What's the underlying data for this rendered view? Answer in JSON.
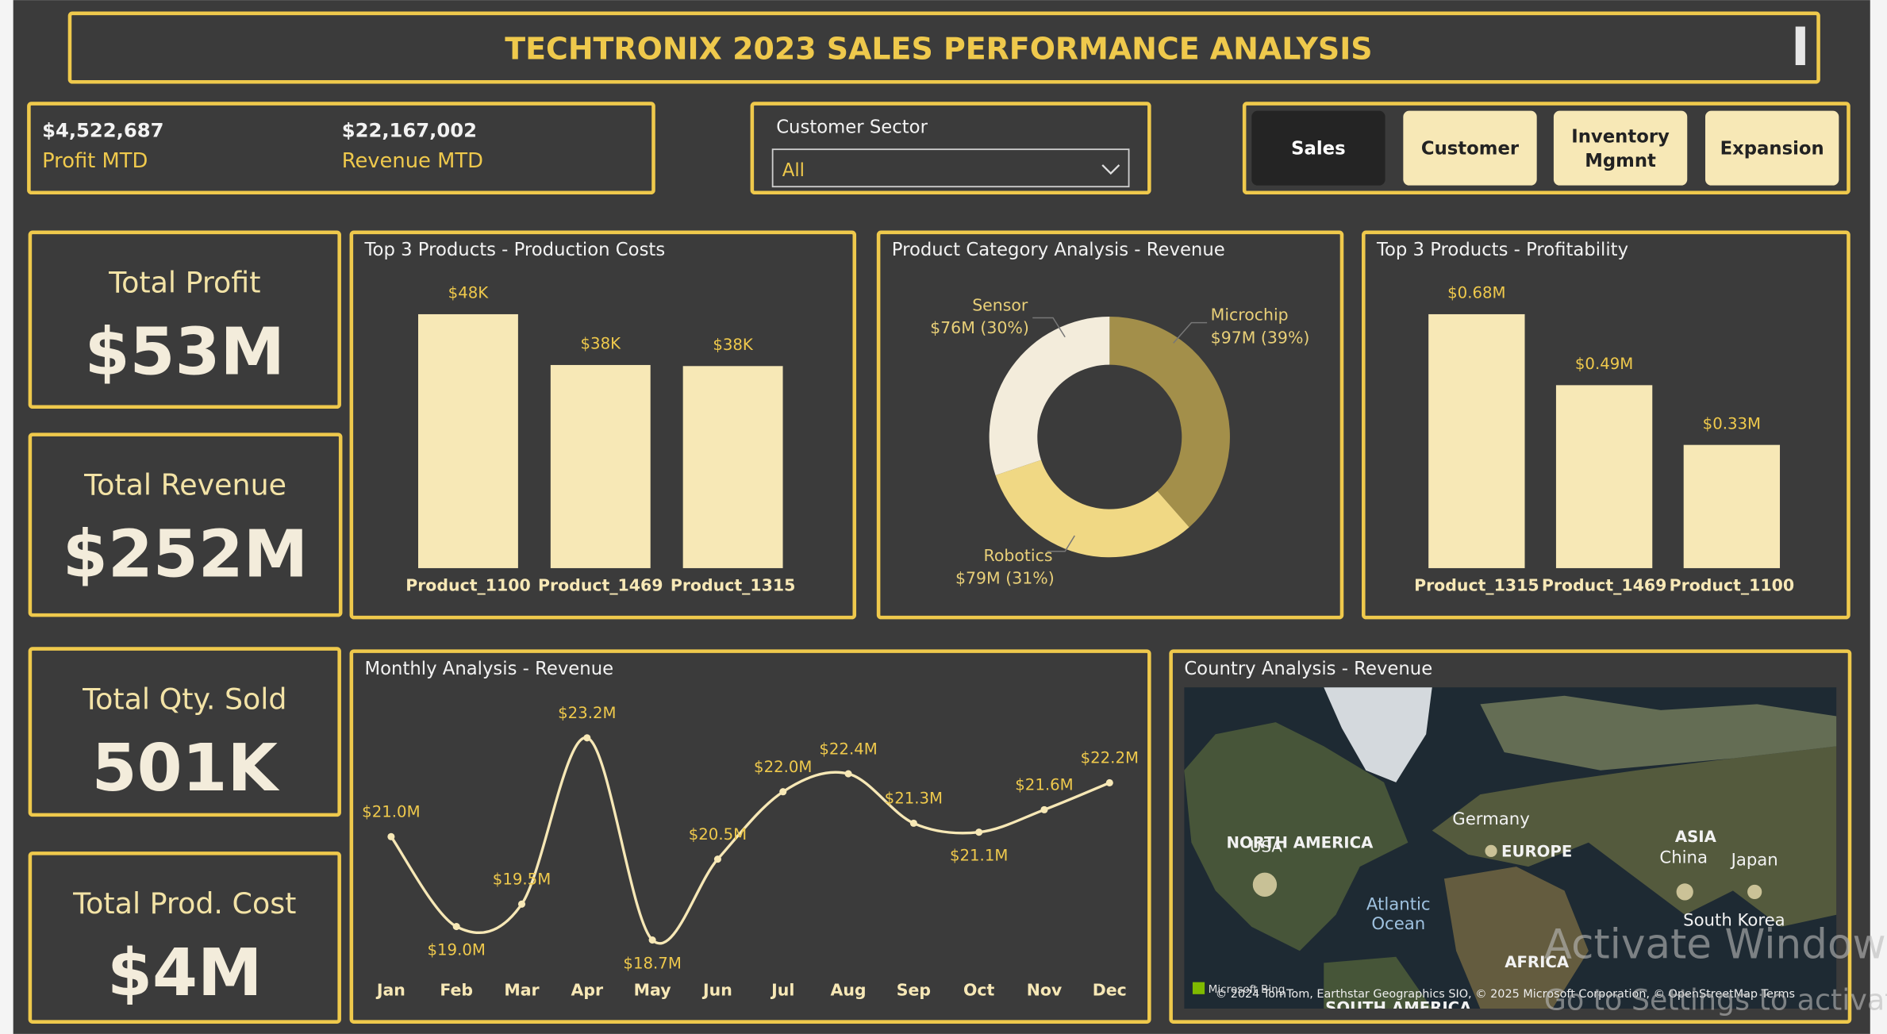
{
  "header": {
    "title": "TECHTRONIX 2023 SALES PERFORMANCE ANALYSIS"
  },
  "mtd": [
    {
      "value": "$4,522,687",
      "label": "Profit MTD"
    },
    {
      "value": "$22,167,002",
      "label": "Revenue MTD"
    }
  ],
  "filter": {
    "label": "Customer Sector",
    "value": "All"
  },
  "nav": [
    {
      "lines": [
        "Sales"
      ],
      "active": true
    },
    {
      "lines": [
        "Customer"
      ],
      "active": false
    },
    {
      "lines": [
        "Inventory",
        "Mgmnt"
      ],
      "active": false
    },
    {
      "lines": [
        "Expansion"
      ],
      "active": false
    }
  ],
  "cards": [
    {
      "label": "Total Profit",
      "value": "$53M"
    },
    {
      "label": "Total Revenue",
      "value": "$252M"
    },
    {
      "label": "Total Qty. Sold",
      "value": "501K"
    },
    {
      "label": "Total Prod. Cost",
      "value": "$4M"
    }
  ],
  "chart_data": [
    {
      "type": "bar",
      "title": "Top 3 Products - Production Costs",
      "categories": [
        "Product_1100",
        "Product_1469",
        "Product_1315"
      ],
      "values": [
        48000,
        38400,
        38200
      ],
      "value_labels": [
        "$48K",
        "$38K",
        "$38K"
      ],
      "color": "#f7e8b6"
    },
    {
      "type": "pie",
      "title": "Product Category Analysis - Revenue",
      "categories": [
        "Microchip",
        "Robotics",
        "Sensor"
      ],
      "values": [
        97,
        79,
        76
      ],
      "value_labels": [
        "$97M (39%)",
        "$79M (31%)",
        "$76M (30%)"
      ],
      "colors": [
        "#a38f4a",
        "#f0d884",
        "#f3ecdb"
      ],
      "donut": true
    },
    {
      "type": "bar",
      "title": "Top 3 Products - Profitability",
      "categories": [
        "Product_1315",
        "Product_1469",
        "Product_1100"
      ],
      "values": [
        0.68,
        0.49,
        0.33
      ],
      "value_labels": [
        "$0.68M",
        "$0.49M",
        "$0.33M"
      ],
      "color": "#f7e8b6"
    },
    {
      "type": "line",
      "title": "Monthly Analysis - Revenue",
      "categories": [
        "Jan",
        "Feb",
        "Mar",
        "Apr",
        "May",
        "Jun",
        "Jul",
        "Aug",
        "Sep",
        "Oct",
        "Nov",
        "Dec"
      ],
      "values": [
        21.0,
        19.0,
        19.5,
        23.2,
        18.7,
        20.5,
        22.0,
        22.4,
        21.3,
        21.1,
        21.6,
        22.2
      ],
      "value_labels": [
        "$21.0M",
        "$19.0M",
        "$19.5M",
        "$23.2M",
        "$18.7M",
        "$20.5M",
        "$22.0M",
        "$22.4M",
        "$21.3M",
        "$21.1M",
        "$21.6M",
        "$22.2M"
      ],
      "color": "#f7e8b6"
    }
  ],
  "map": {
    "title": "Country Analysis - Revenue",
    "labels": [
      "NORTH AMERICA",
      "USA",
      "Germany",
      "EUROPE",
      "ASIA",
      "China",
      "Japan",
      "South Korea",
      "Atlantic Ocean",
      "AFRICA",
      "SOUTH AMERICA"
    ],
    "attribution": "© 2024 TomTom, Earthstar Geographics SIO, © 2025 Microsoft Corporation, © OpenStreetMap  Terms",
    "brand": "Microsoft Bing"
  },
  "watermark": [
    "Activate Windows",
    "Go to Settings to activate Windows."
  ]
}
